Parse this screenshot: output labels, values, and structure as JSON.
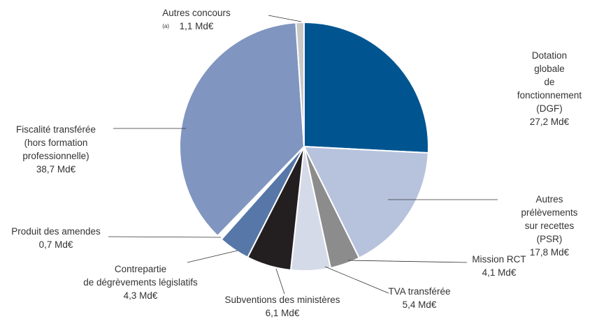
{
  "chart_data": {
    "type": "pie",
    "categories": [
      "Dotation globale\nde fonctionnement (DGF)",
      "Autres prélèvements\nsur recettes (PSR)",
      "Mission RCT",
      "TVA transférée",
      "Subventions des ministères",
      "Contrepartie\nde dégrèvements législatifs",
      "Produit des amendes",
      "Fiscalité transférée\n(hors formation\nprofessionnelle)",
      "Autres concours"
    ],
    "values": [
      27.2,
      17.8,
      4.1,
      5.4,
      6.1,
      4.3,
      0.7,
      38.7,
      1.1
    ],
    "value_labels": [
      "27,2 Md€",
      "17,8 Md€",
      "4,1 Md€",
      "5,4 Md€",
      "6,1 Md€",
      "4,3 Md€",
      "0,7 Md€",
      "38,7 Md€",
      "1,1 Md€"
    ],
    "colors": [
      "#005591",
      "#b7c3dd",
      "#8c8c8c",
      "#d5dae8",
      "#231f20",
      "#5677a8",
      "#ffffff",
      "#8096c0",
      "#c8c8c8"
    ],
    "annotation": "(a)"
  }
}
